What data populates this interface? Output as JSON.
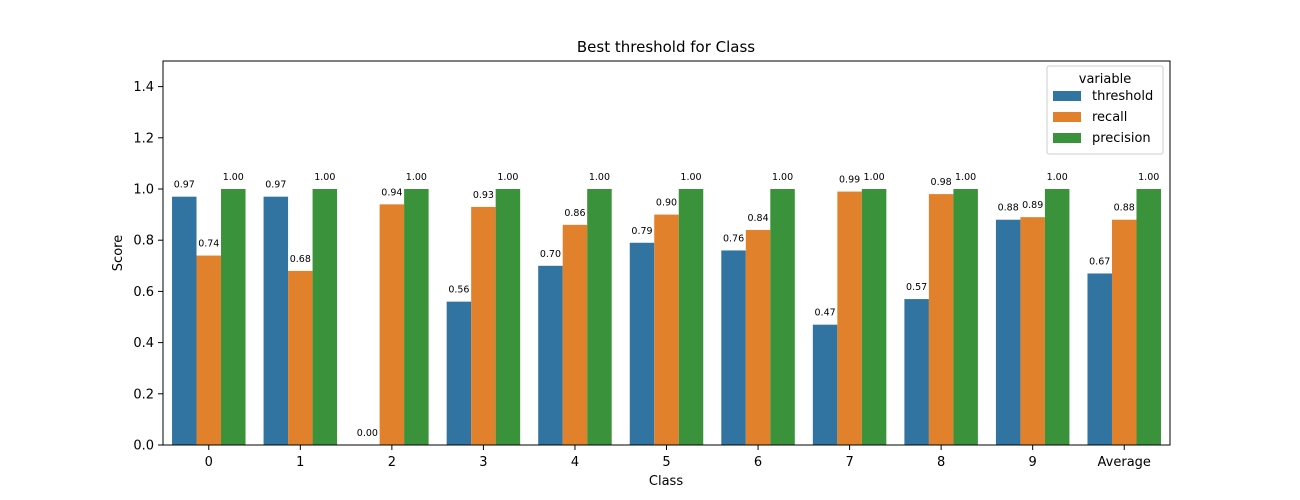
{
  "chart_data": {
    "type": "bar",
    "title": "Best threshold for Class",
    "xlabel": "Class",
    "ylabel": "Score",
    "categories": [
      "0",
      "1",
      "2",
      "3",
      "4",
      "5",
      "6",
      "7",
      "8",
      "9",
      "Average"
    ],
    "series": [
      {
        "name": "threshold",
        "color": "#3274a1",
        "values": [
          0.97,
          0.97,
          0.0,
          0.56,
          0.7,
          0.79,
          0.76,
          0.47,
          0.57,
          0.88,
          0.67
        ]
      },
      {
        "name": "recall",
        "color": "#e1812c",
        "values": [
          0.74,
          0.68,
          0.94,
          0.93,
          0.86,
          0.9,
          0.84,
          0.99,
          0.98,
          0.89,
          0.88
        ]
      },
      {
        "name": "precision",
        "color": "#3a923a",
        "values": [
          1.0,
          1.0,
          1.0,
          1.0,
          1.0,
          1.0,
          1.0,
          1.0,
          1.0,
          1.0,
          1.0
        ]
      }
    ],
    "value_labels": [
      [
        "0.97",
        "0.97",
        "0.00",
        "0.56",
        "0.70",
        "0.79",
        "0.76",
        "0.47",
        "0.57",
        "0.88",
        "0.67"
      ],
      [
        "0.74",
        "0.68",
        "0.94",
        "0.93",
        "0.86",
        "0.90",
        "0.84",
        "0.99",
        "0.98",
        "0.89",
        "0.88"
      ],
      [
        "1.00",
        "1.00",
        "1.00",
        "1.00",
        "1.00",
        "1.00",
        "1.00",
        "1.00",
        "1.00",
        "1.00",
        "1.00"
      ]
    ],
    "ylim": [
      0,
      1.5
    ],
    "yticks": [
      "0.0",
      "0.2",
      "0.4",
      "0.6",
      "0.8",
      "1.0",
      "1.2",
      "1.4"
    ],
    "grid": false,
    "legend": {
      "title": "variable",
      "position": "top-right"
    }
  }
}
